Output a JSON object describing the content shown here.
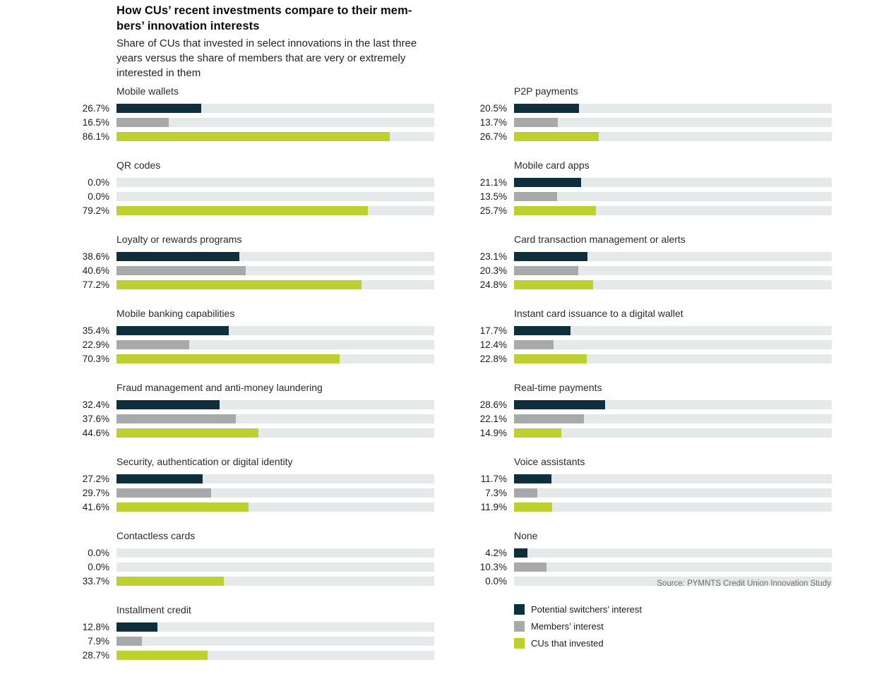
{
  "header": {
    "title": "How CUs’ recent investments compare to their members’ innovation interests",
    "title_line1": "How CUs’ recent investments compare to their mem-",
    "title_line2": "bers’ innovation interests",
    "subtitle": "Share of CUs that invested in select innovations in the last three years versus the share of members that are very or extremely interested in them"
  },
  "source": "Source: PYMNTS Credit Union Innovation Study",
  "colors": {
    "potential_switchers": "#0f2f3d",
    "members": "#a7a9ab",
    "cus_invested": "#bdd02f",
    "bar_track": "#e6e9e9",
    "source_text": "#6d6e71"
  },
  "chart_data": {
    "type": "bar",
    "orientation": "horizontal",
    "value_unit": "percent",
    "axis_range": [
      0,
      100
    ],
    "grid": false,
    "legend_position": "bottom-right",
    "series": [
      {
        "name": "Potential switchers’ interest",
        "color": "#0f2f3d"
      },
      {
        "name": "Members’ interest",
        "color": "#a7a9ab"
      },
      {
        "name": "CUs that invested",
        "color": "#bdd02f"
      }
    ],
    "columns": {
      "left": [
        {
          "category": "Mobile wallets",
          "values": [
            26.7,
            16.5,
            86.1
          ]
        },
        {
          "category": "QR codes",
          "values": [
            0.0,
            0.0,
            79.2
          ]
        },
        {
          "category": "Loyalty or rewards programs",
          "values": [
            38.6,
            40.6,
            77.2
          ]
        },
        {
          "category": "Mobile banking capabilities",
          "values": [
            35.4,
            22.9,
            70.3
          ]
        },
        {
          "category": "Fraud management and anti-money laundering",
          "values": [
            32.4,
            37.6,
            44.6
          ]
        },
        {
          "category": "Security, authentication or digital identity",
          "values": [
            27.2,
            29.7,
            41.6
          ]
        },
        {
          "category": "Contactless cards",
          "values": [
            0.0,
            0.0,
            33.7
          ]
        },
        {
          "category": "Installment credit",
          "values": [
            12.8,
            7.9,
            28.7
          ]
        }
      ],
      "right": [
        {
          "category": "P2P payments",
          "values": [
            20.5,
            13.7,
            26.7
          ]
        },
        {
          "category": "Mobile card apps",
          "values": [
            21.1,
            13.5,
            25.7
          ]
        },
        {
          "category": "Card transaction management or alerts",
          "values": [
            23.1,
            20.3,
            24.8
          ]
        },
        {
          "category": "Instant card issuance to a digital wallet",
          "values": [
            17.7,
            12.4,
            22.8
          ]
        },
        {
          "category": "Real-time payments",
          "values": [
            28.6,
            22.1,
            14.9
          ]
        },
        {
          "category": "Voice assistants",
          "values": [
            11.7,
            7.3,
            11.9
          ]
        },
        {
          "category": "None",
          "values": [
            4.2,
            10.3,
            0.0
          ]
        }
      ]
    }
  }
}
